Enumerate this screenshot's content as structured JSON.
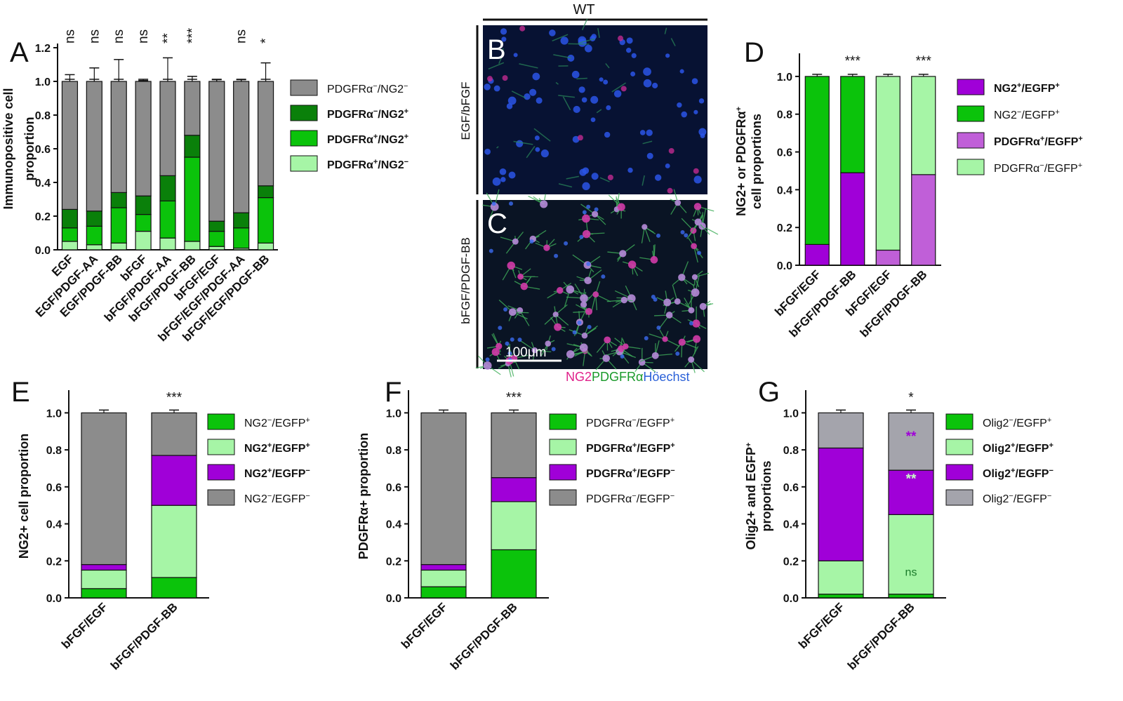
{
  "chart_data": [
    {
      "panel": "A",
      "type": "bar",
      "stacked": true,
      "ylabel": "Immunopositive cell proportion",
      "ylim": [
        0,
        1.2
      ],
      "yticks": [
        "0.0",
        "0.2",
        "0.4",
        "0.6",
        "0.8",
        "1.0",
        "1.2"
      ],
      "categories": [
        "EGF",
        "EGF/PDGF-AA",
        "EGF/PDGF-BB",
        "bFGF",
        "bFGF/PDGF-AA",
        "bFGF/PDGF-BB",
        "bFGF/EGF",
        "bFGF/EGF/PDGF-AA",
        "bFGF/EGF/PDGF-BB"
      ],
      "significance": [
        "ns",
        "ns",
        "ns",
        "ns",
        "**",
        "***",
        "",
        "ns",
        "*"
      ],
      "series": [
        {
          "name": "PDGFRα+/NG2-",
          "color": "#a6f5a6",
          "values": [
            0.05,
            0.03,
            0.04,
            0.11,
            0.07,
            0.05,
            0.02,
            0.01,
            0.04
          ]
        },
        {
          "name": "PDGFRα+/NG2+",
          "color": "#0bc30b",
          "values": [
            0.08,
            0.11,
            0.21,
            0.1,
            0.22,
            0.5,
            0.09,
            0.12,
            0.27
          ]
        },
        {
          "name": "PDGFRα-/NG2+",
          "color": "#0a800a",
          "values": [
            0.11,
            0.09,
            0.09,
            0.11,
            0.15,
            0.13,
            0.06,
            0.09,
            0.07
          ]
        },
        {
          "name": "PDGFRα-/NG2-",
          "color": "#8c8c8c",
          "values": [
            0.76,
            0.77,
            0.66,
            0.68,
            0.56,
            0.32,
            0.83,
            0.78,
            0.62
          ]
        }
      ],
      "errors_top": [
        0.04,
        0.08,
        0.13,
        0.005,
        0.14,
        0.03,
        0.01,
        0.01,
        0.11
      ]
    },
    {
      "panel": "D",
      "type": "bar",
      "stacked": true,
      "ylabel_line1": "NG2+ or PDGFRα+",
      "ylabel_line2": "cell proportions",
      "ylim": [
        0,
        1.1
      ],
      "yticks": [
        "0.0",
        "0.2",
        "0.4",
        "0.6",
        "0.8",
        "1.0"
      ],
      "categories": [
        "bFGF/EGF",
        "bFGF/PDGF-BB",
        "bFGF/EGF",
        "bFGF/PDGF-BB"
      ],
      "significance": [
        "",
        "***",
        "",
        "***"
      ],
      "bars": [
        {
          "bottom": 0.11,
          "bottom_color": "#a000d8",
          "top_color": "#0bc30b"
        },
        {
          "bottom": 0.49,
          "bottom_color": "#a000d8",
          "top_color": "#0bc30b"
        },
        {
          "bottom": 0.08,
          "bottom_color": "#c05fd8",
          "top_color": "#a6f5a6"
        },
        {
          "bottom": 0.48,
          "bottom_color": "#c05fd8",
          "top_color": "#a6f5a6"
        }
      ],
      "legend": [
        {
          "name": "NG2+/EGFP+",
          "color": "#a000d8"
        },
        {
          "name": "NG2-/EGFP+",
          "color": "#0bc30b"
        },
        {
          "name": "PDGFRα+/EGFP+",
          "color": "#c05fd8"
        },
        {
          "name": "PDGFRα-/EGFP+",
          "color": "#a6f5a6"
        }
      ]
    },
    {
      "panel": "E",
      "type": "bar",
      "stacked": true,
      "ylabel": "NG2+ cell proportion",
      "ylim": [
        0,
        1.1
      ],
      "yticks": [
        "0.0",
        "0.2",
        "0.4",
        "0.6",
        "0.8",
        "1.0"
      ],
      "categories": [
        "bFGF/EGF",
        "bFGF/PDGF-BB"
      ],
      "significance": [
        "",
        "***"
      ],
      "series": [
        {
          "name": "NG2-/EGFP+",
          "color": "#0bc30b",
          "values": [
            0.05,
            0.11
          ]
        },
        {
          "name": "NG2+/EGFP+",
          "color": "#a6f5a6",
          "values": [
            0.1,
            0.39
          ]
        },
        {
          "name": "NG2+/EGFP-",
          "color": "#a000d8",
          "values": [
            0.03,
            0.27
          ]
        },
        {
          "name": "NG2-/EGFP-",
          "color": "#8c8c8c",
          "values": [
            0.82,
            0.23
          ]
        }
      ]
    },
    {
      "panel": "F",
      "type": "bar",
      "stacked": true,
      "ylabel": "PDGFRα+ proportion",
      "ylim": [
        0,
        1.1
      ],
      "yticks": [
        "0.0",
        "0.2",
        "0.4",
        "0.6",
        "0.8",
        "1.0"
      ],
      "categories": [
        "bFGF/EGF",
        "bFGF/PDGF-BB"
      ],
      "significance": [
        "",
        "***"
      ],
      "series": [
        {
          "name": "PDGFRα-/EGFP+",
          "color": "#0bc30b",
          "values": [
            0.06,
            0.26
          ]
        },
        {
          "name": "PDGFRα+/EGFP+",
          "color": "#a6f5a6",
          "values": [
            0.09,
            0.26
          ]
        },
        {
          "name": "PDGFRα+/EGFP-",
          "color": "#a000d8",
          "values": [
            0.03,
            0.13
          ]
        },
        {
          "name": "PDGFRα-/EGFP-",
          "color": "#8c8c8c",
          "values": [
            0.82,
            0.35
          ]
        }
      ]
    },
    {
      "panel": "G",
      "type": "bar",
      "stacked": true,
      "ylabel_line1": "Olig2+ and EGFP+",
      "ylabel_line2": "proportions",
      "ylim": [
        0,
        1.1
      ],
      "yticks": [
        "0.0",
        "0.2",
        "0.4",
        "0.6",
        "0.8",
        "1.0"
      ],
      "categories": [
        "bFGF/EGF",
        "bFGF/PDGF-BB"
      ],
      "significance": [
        "",
        "*"
      ],
      "inner_marks": [
        "ns",
        "**",
        "**"
      ],
      "series": [
        {
          "name": "Olig2-/EGFP+",
          "color": "#0bc30b",
          "values": [
            0.02,
            0.02
          ]
        },
        {
          "name": "Olig2+/EGFP+",
          "color": "#a6f5a6",
          "values": [
            0.18,
            0.43
          ]
        },
        {
          "name": "Olig2+/EGFP-",
          "color": "#a000d8",
          "values": [
            0.61,
            0.24
          ]
        },
        {
          "name": "Olig2-/EGFP-",
          "color": "#a4a4ac",
          "values": [
            0.19,
            0.31
          ]
        }
      ]
    }
  ],
  "panels": {
    "A": "A",
    "B": "B",
    "C": "C",
    "D": "D",
    "E": "E",
    "F": "F",
    "G": "G"
  },
  "micrograph": {
    "header": "WT",
    "row_b_label": "EGF/bFGF",
    "row_c_label": "bFGF/PDGF-BB",
    "scale_bar": "100μm",
    "channels": [
      {
        "name": "NG2",
        "color": "#e0208a"
      },
      {
        "name": "PDGFRα",
        "color": "#1a9a2a"
      },
      {
        "name": "Höechst",
        "color": "#2a60d8"
      }
    ]
  }
}
